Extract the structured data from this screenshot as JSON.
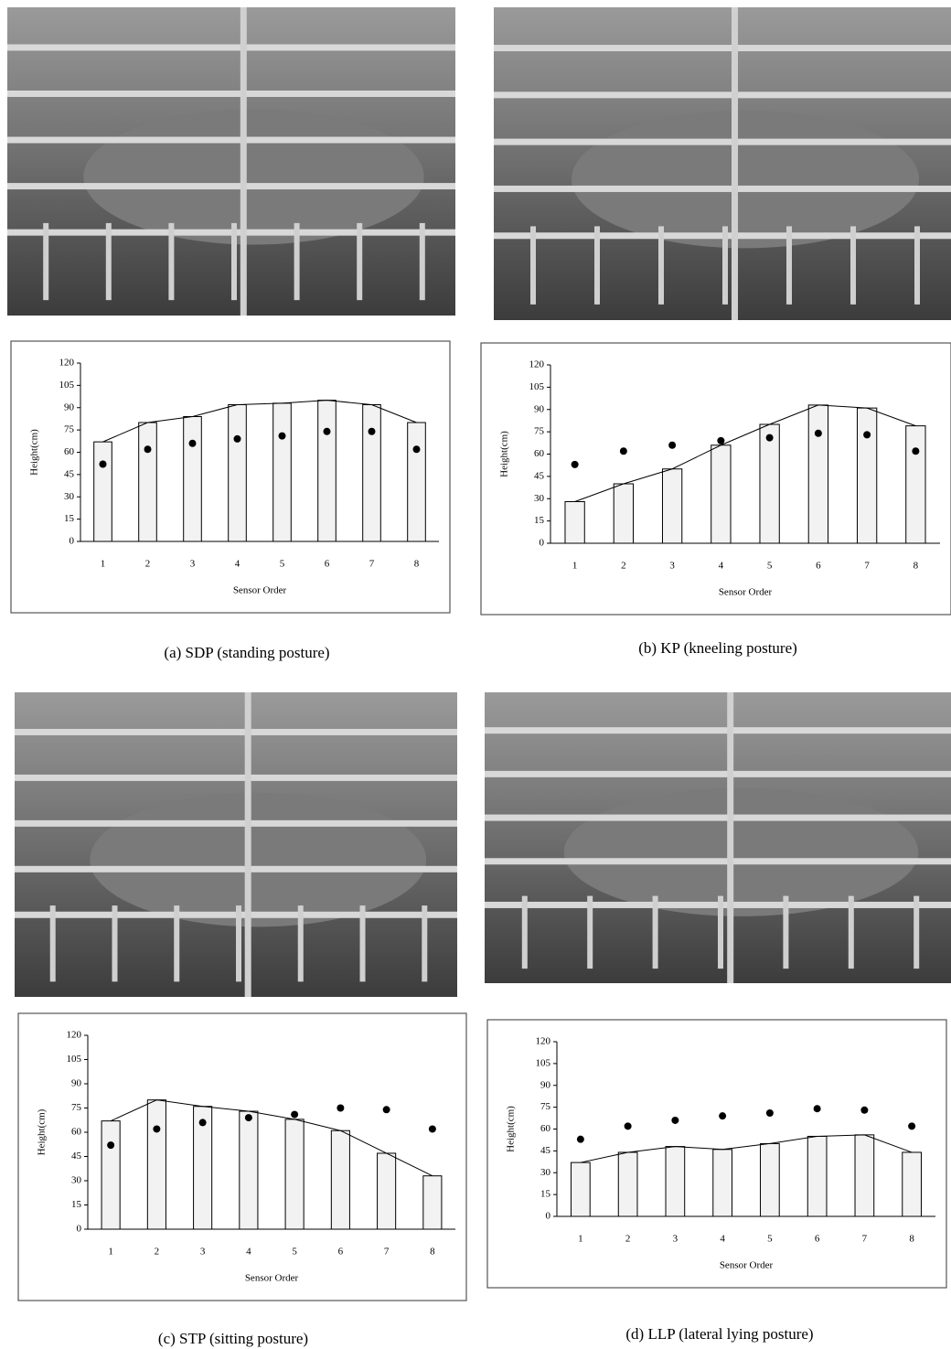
{
  "chart_data": [
    {
      "type": "bar",
      "caption": "(a) SDP (standing posture)",
      "ylabel": "Height(cm)",
      "xlabel": "Sensor Order",
      "categories": [
        "1",
        "2",
        "3",
        "4",
        "5",
        "6",
        "7",
        "8"
      ],
      "series": [
        {
          "color": "#f2f2f2",
          "values": [
            67,
            80,
            84,
            92,
            93,
            95,
            92,
            80
          ]
        },
        {
          "color": "#000000",
          "values": [
            52,
            62,
            66,
            69,
            71,
            74,
            74,
            62
          ]
        }
      ],
      "ylim": [
        0,
        120
      ],
      "yticks": [
        0,
        15,
        30,
        45,
        60,
        75,
        90,
        105,
        120
      ]
    },
    {
      "type": "bar",
      "caption": "(b) KP (kneeling posture)",
      "ylabel": "Height(cm)",
      "xlabel": "Sensor Order",
      "categories": [
        "1",
        "2",
        "3",
        "4",
        "5",
        "6",
        "7",
        "8"
      ],
      "series": [
        {
          "color": "#f2f2f2",
          "values": [
            28,
            40,
            50,
            66,
            80,
            93,
            91,
            79
          ]
        },
        {
          "color": "#000000",
          "values": [
            53,
            62,
            66,
            69,
            71,
            74,
            73,
            62
          ]
        }
      ],
      "ylim": [
        0,
        120
      ],
      "yticks": [
        0,
        15,
        30,
        45,
        60,
        75,
        90,
        105,
        120
      ]
    },
    {
      "type": "bar",
      "caption": "(c) STP (sitting posture)",
      "ylabel": "Height(cm)",
      "xlabel": "Sensor Order",
      "categories": [
        "1",
        "2",
        "3",
        "4",
        "5",
        "6",
        "7",
        "8"
      ],
      "series": [
        {
          "color": "#f2f2f2",
          "values": [
            67,
            80,
            76,
            73,
            68,
            61,
            47,
            33
          ]
        },
        {
          "color": "#000000",
          "values": [
            52,
            62,
            66,
            69,
            71,
            75,
            74,
            62
          ]
        }
      ],
      "ylim": [
        0,
        120
      ],
      "yticks": [
        0,
        15,
        30,
        45,
        60,
        75,
        90,
        105,
        120
      ]
    },
    {
      "type": "bar",
      "caption": "(d) LLP (lateral lying posture)",
      "ylabel": "Height(cm)",
      "xlabel": "Sensor Order",
      "categories": [
        "1",
        "2",
        "3",
        "4",
        "5",
        "6",
        "7",
        "8"
      ],
      "series": [
        {
          "color": "#f2f2f2",
          "values": [
            37,
            44,
            48,
            46,
            50,
            55,
            56,
            44
          ]
        },
        {
          "color": "#000000",
          "values": [
            53,
            62,
            66,
            69,
            71,
            74,
            73,
            62
          ]
        }
      ],
      "ylim": [
        0,
        120
      ],
      "yticks": [
        0,
        15,
        30,
        45,
        60,
        75,
        90,
        105,
        120
      ]
    }
  ]
}
